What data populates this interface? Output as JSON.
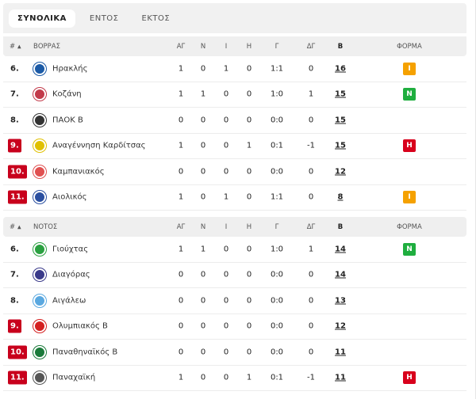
{
  "tabs": [
    {
      "label": "ΣΥΝΟΛΙΚΑ",
      "active": true
    },
    {
      "label": "ΕΝΤΟΣ",
      "active": false
    },
    {
      "label": "ΕΚΤΟΣ",
      "active": false
    }
  ],
  "columns": {
    "rank": "#",
    "sort_icon": "▲",
    "played": "ΑΓ",
    "won": "Ν",
    "draw": "Ι",
    "lost": "Η",
    "goals": "Γ",
    "diff": "ΔΓ",
    "points": "Β",
    "form": "ΦΟΡΜΑ"
  },
  "colors": {
    "relegation": "#c8001c",
    "draw": "#f5a100",
    "win": "#1fae3f",
    "loss": "#d8001c"
  },
  "groups": [
    {
      "name": "ΒΟΡΡΑΣ",
      "rows": [
        {
          "rank": "6.",
          "team": "Ηρακλής",
          "logo": "#1b5aa6",
          "p": "1",
          "w": "0",
          "d": "1",
          "l": "0",
          "g": "1:1",
          "gd": "0",
          "pts": "16",
          "form": "Ι",
          "red": false
        },
        {
          "rank": "7.",
          "team": "Κοζάνη",
          "logo": "#c23a4a",
          "p": "1",
          "w": "1",
          "d": "0",
          "l": "0",
          "g": "1:0",
          "gd": "1",
          "pts": "15",
          "form": "Ν",
          "red": false
        },
        {
          "rank": "8.",
          "team": "ΠΑΟΚ Β",
          "logo": "#333333",
          "p": "0",
          "w": "0",
          "d": "0",
          "l": "0",
          "g": "0:0",
          "gd": "0",
          "pts": "15",
          "form": "",
          "red": false
        },
        {
          "rank": "9.",
          "team": "Αναγέννηση Καρδίτσας",
          "logo": "#e0c000",
          "p": "1",
          "w": "0",
          "d": "0",
          "l": "1",
          "g": "0:1",
          "gd": "-1",
          "pts": "15",
          "form": "Η",
          "red": true
        },
        {
          "rank": "10.",
          "team": "Καμπανιακός",
          "logo": "#e05050",
          "p": "0",
          "w": "0",
          "d": "0",
          "l": "0",
          "g": "0:0",
          "gd": "0",
          "pts": "12",
          "form": "",
          "red": true
        },
        {
          "rank": "11.",
          "team": "Αιολικός",
          "logo": "#2a4fa0",
          "p": "1",
          "w": "0",
          "d": "1",
          "l": "0",
          "g": "1:1",
          "gd": "0",
          "pts": "8",
          "form": "Ι",
          "red": true
        }
      ]
    },
    {
      "name": "ΝΟΤΟΣ",
      "rows": [
        {
          "rank": "6.",
          "team": "Γιούχτας",
          "logo": "#2aa040",
          "p": "1",
          "w": "1",
          "d": "0",
          "l": "0",
          "g": "1:0",
          "gd": "1",
          "pts": "14",
          "form": "Ν",
          "red": false
        },
        {
          "rank": "7.",
          "team": "Διαγόρας",
          "logo": "#3a3a8a",
          "p": "0",
          "w": "0",
          "d": "0",
          "l": "0",
          "g": "0:0",
          "gd": "0",
          "pts": "14",
          "form": "",
          "red": false
        },
        {
          "rank": "8.",
          "team": "Αιγάλεω",
          "logo": "#5aa8e0",
          "p": "0",
          "w": "0",
          "d": "0",
          "l": "0",
          "g": "0:0",
          "gd": "0",
          "pts": "13",
          "form": "",
          "red": false
        },
        {
          "rank": "9.",
          "team": "Ολυμπιακός Β",
          "logo": "#d42020",
          "p": "0",
          "w": "0",
          "d": "0",
          "l": "0",
          "g": "0:0",
          "gd": "0",
          "pts": "12",
          "form": "",
          "red": true
        },
        {
          "rank": "10.",
          "team": "Παναθηναϊκός Β",
          "logo": "#1a7a3a",
          "p": "0",
          "w": "0",
          "d": "0",
          "l": "0",
          "g": "0:0",
          "gd": "0",
          "pts": "11",
          "form": "",
          "red": true
        },
        {
          "rank": "11.",
          "team": "Παναχαϊκή",
          "logo": "#555555",
          "p": "1",
          "w": "0",
          "d": "0",
          "l": "1",
          "g": "0:1",
          "gd": "-1",
          "pts": "11",
          "form": "Η",
          "red": true
        }
      ]
    }
  ]
}
